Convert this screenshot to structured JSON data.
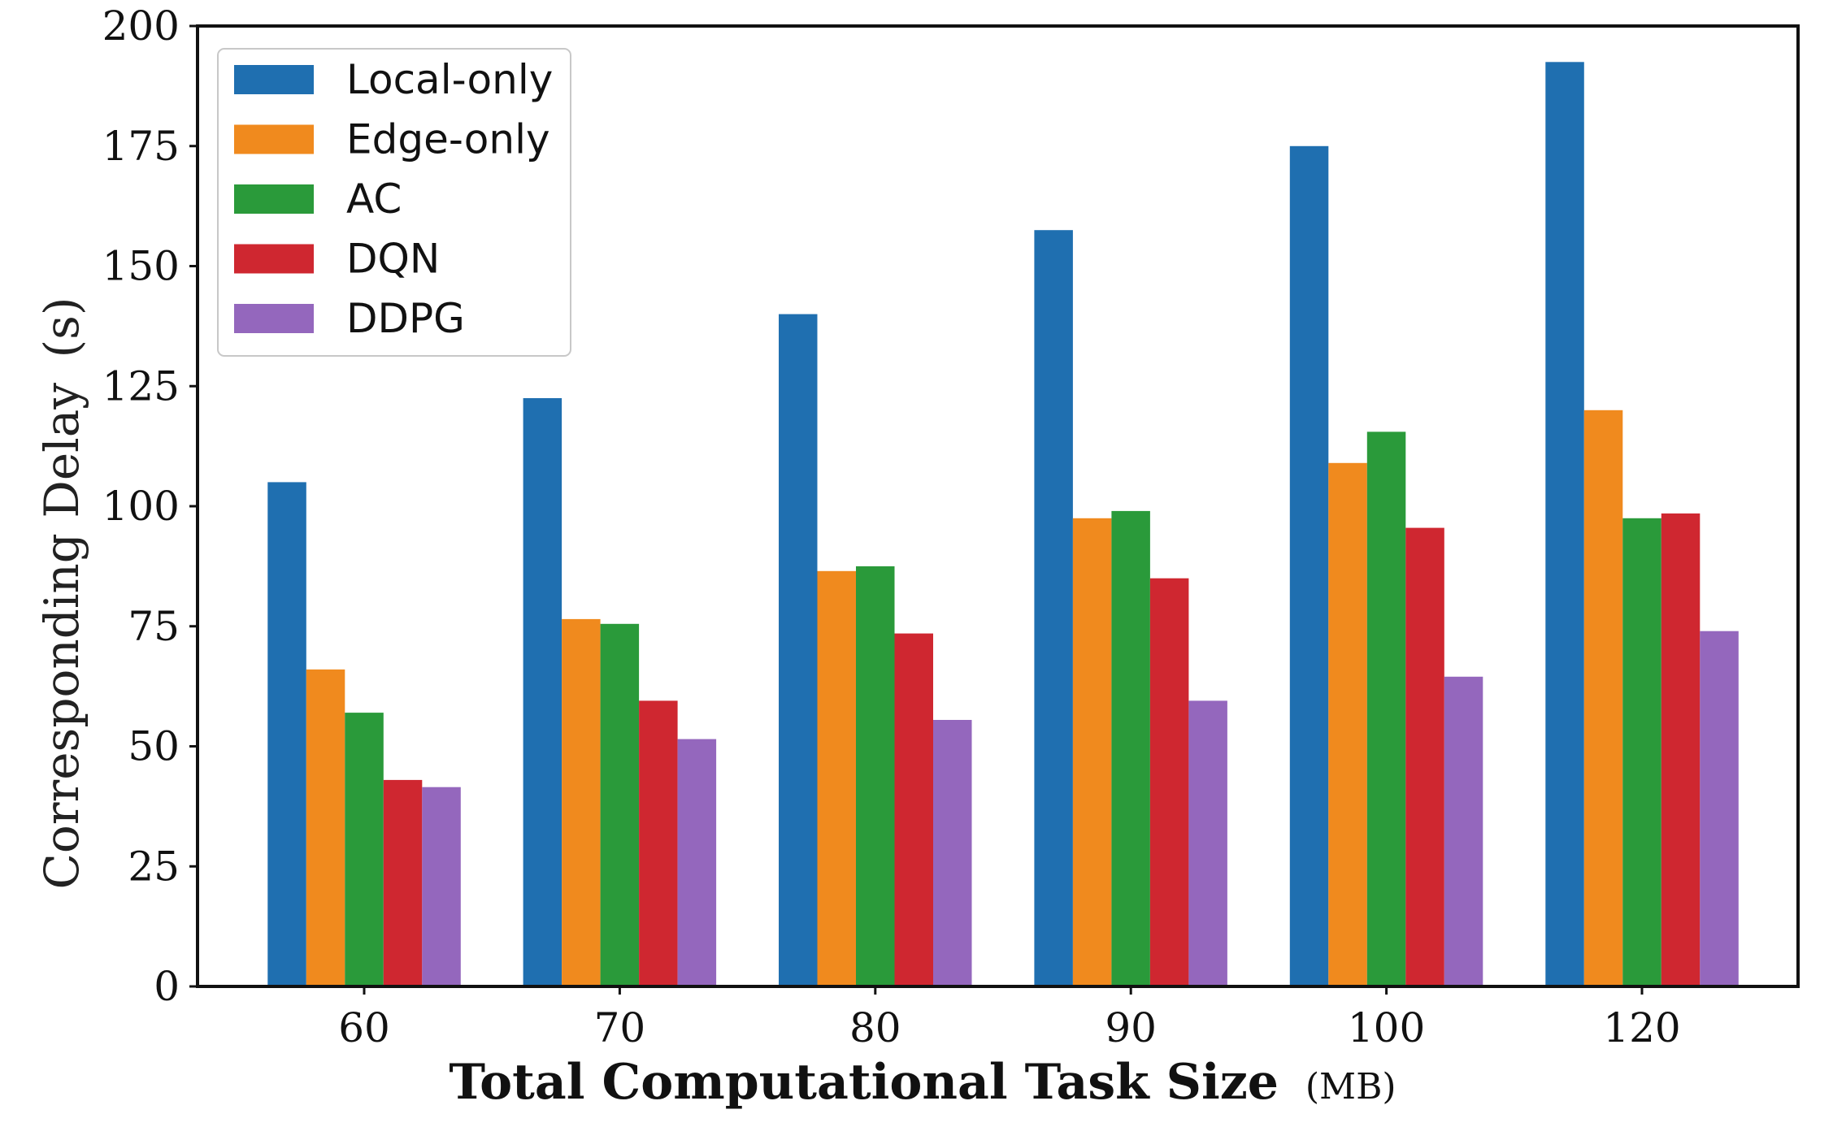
{
  "chart_data": {
    "type": "bar",
    "title": "",
    "xlabel": "Total Computational Task Size",
    "xlabel_unit": "(MB)",
    "ylabel": "Corresponding Delay",
    "ylabel_unit": "(s)",
    "categories": [
      "60",
      "70",
      "80",
      "90",
      "100",
      "120"
    ],
    "ylim": [
      0,
      200
    ],
    "yticks": [
      0,
      25,
      50,
      75,
      100,
      125,
      150,
      175,
      200
    ],
    "grid": false,
    "legend_position": "top-left",
    "series": [
      {
        "name": "Local-only",
        "color": "#1f6fb0",
        "values": [
          105,
          122.5,
          140,
          157.5,
          175,
          192.5
        ]
      },
      {
        "name": "Edge-only",
        "color": "#f08a1e",
        "values": [
          66,
          76.5,
          86.5,
          97.5,
          109,
          120
        ]
      },
      {
        "name": "AC",
        "color": "#2a9a3a",
        "values": [
          57,
          75.5,
          87.5,
          99,
          115.5,
          97.5
        ]
      },
      {
        "name": "DQN",
        "color": "#cf2730",
        "values": [
          43,
          59.5,
          73.5,
          85,
          95.5,
          98.5
        ]
      },
      {
        "name": "DDPG",
        "color": "#9467bd",
        "values": [
          41.5,
          51.5,
          55.5,
          59.5,
          64.5,
          74
        ]
      }
    ]
  }
}
